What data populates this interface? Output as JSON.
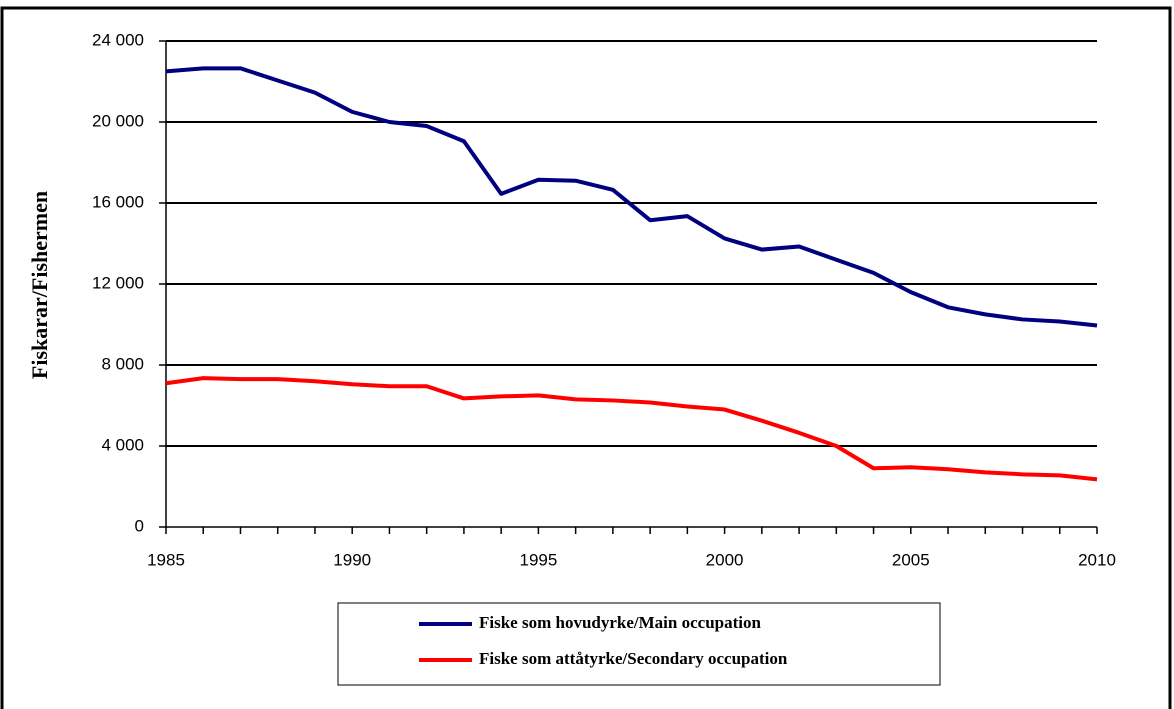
{
  "chart_data": {
    "type": "line",
    "y_label": "Fiskarar/Fishermen",
    "x": [
      1985,
      1986,
      1987,
      1988,
      1989,
      1990,
      1991,
      1992,
      1993,
      1994,
      1995,
      1996,
      1997,
      1998,
      1999,
      2000,
      2001,
      2002,
      2003,
      2004,
      2005,
      2006,
      2007,
      2008,
      2009,
      2010
    ],
    "series": [
      {
        "name": "Fiske som hovudyrke/Main occupation",
        "color": "#000080",
        "values": [
          22500,
          22650,
          22650,
          22050,
          21450,
          20500,
          20000,
          19800,
          19050,
          16450,
          17150,
          17100,
          16650,
          15150,
          15350,
          14250,
          13700,
          13850,
          13200,
          12550,
          11600,
          10850,
          10500,
          10250,
          10150,
          9950
        ]
      },
      {
        "name": "Fiske som attåtyrke/Secondary occupation",
        "color": "#ff0000",
        "values": [
          7100,
          7350,
          7300,
          7300,
          7200,
          7050,
          6950,
          6950,
          6350,
          6450,
          6500,
          6300,
          6250,
          6150,
          5950,
          5800,
          5250,
          4650,
          4000,
          2900,
          2950,
          2850,
          2700,
          2600,
          2550,
          2350
        ]
      }
    ],
    "xlim": [
      1985,
      2010
    ],
    "xticks": [
      1985,
      1990,
      1995,
      2000,
      2005,
      2010
    ],
    "ylim": [
      0,
      24000
    ],
    "yticks": [
      0,
      {
        "value": 4000,
        "label": "4 000"
      },
      {
        "value": 8000,
        "label": "8 000"
      },
      {
        "value": 12000,
        "label": "12 000"
      },
      {
        "value": 16000,
        "label": "16 000"
      },
      {
        "value": 20000,
        "label": "20 000"
      },
      {
        "value": 24000,
        "label": "24 000"
      }
    ],
    "grid": true,
    "legend": "bottom"
  }
}
